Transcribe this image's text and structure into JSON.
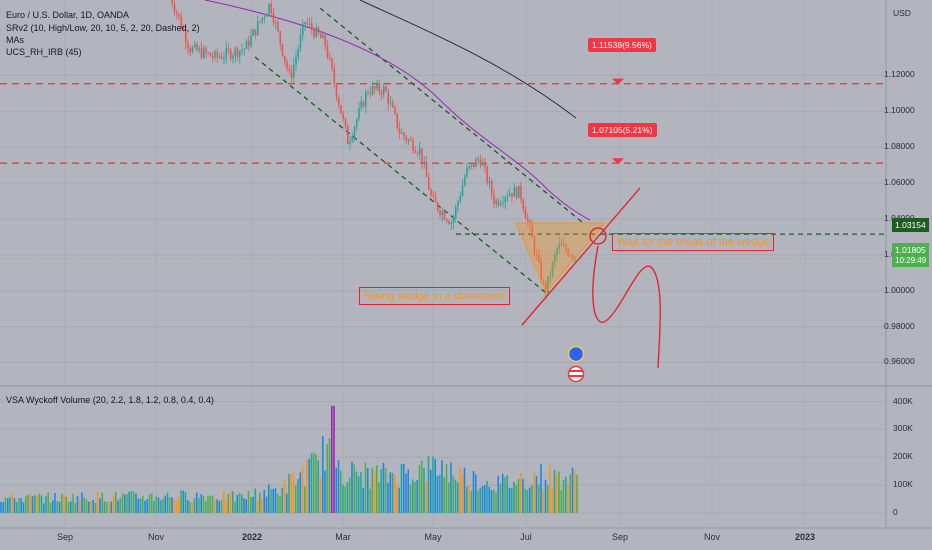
{
  "header": {
    "symbol": "Euro / U.S. Dollar, 1D, OANDA",
    "indicators": [
      "SRv2 (10, High/Low, 20, 10, 5, 2, 20, Dashed, 2)",
      "MAs",
      "UCS_RH_IRB (45)"
    ],
    "volume_indicator": "VSA Wyckoff Volume (20, 2.2, 1.8, 1.2, 0.8, 0.4, 0.4)",
    "currency": "USD"
  },
  "chart_data": {
    "type": "candlestick",
    "x_axis_labels": [
      "Sep",
      "Nov",
      "2022",
      "Mar",
      "May",
      "Jul",
      "Sep",
      "Nov",
      "2023"
    ],
    "price_axis": {
      "ticks": [
        "1.12000",
        "1.10000",
        "1.08000",
        "1.06000",
        "1.04000",
        "1.02000",
        "1.00000",
        "0.98000",
        "0.96000"
      ],
      "range": [
        0.948,
        1.162
      ]
    },
    "volume_axis": {
      "ticks": [
        "400K",
        "300K",
        "200K",
        "100K",
        "0"
      ],
      "range": [
        0,
        420000
      ]
    },
    "current_price": {
      "value": 1.01805,
      "label": "1.01805",
      "countdown": "10:29:49",
      "color": "#4caf50"
    },
    "resistance_level": {
      "value": 1.03154,
      "label": "1.03154",
      "color": "#1b5e20"
    },
    "targets": [
      {
        "value": 1.11538,
        "label": "1.11538(9.56%)",
        "color": "#f23645"
      },
      {
        "value": 1.07105,
        "label": "1.07105(5.21%)",
        "color": "#f23645"
      }
    ],
    "annotations": [
      {
        "text": "Rising wedge in a downtrend"
      },
      {
        "text": "Wait for the break of the wedge"
      }
    ]
  },
  "colors": {
    "background": "#b2b5be",
    "up": "#26a69a",
    "down": "#ef5350",
    "target_line": "#f23645",
    "trend_line": "#1b5e20"
  }
}
